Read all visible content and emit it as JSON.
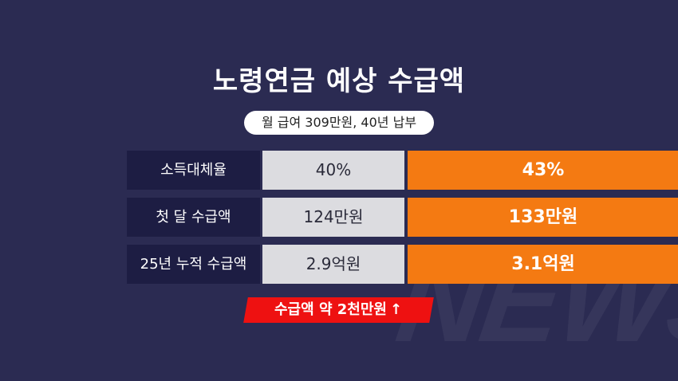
{
  "watermark": "NEWS",
  "title": "노령연금 예상 수급액",
  "subtitle": "월 급여 309만원, 40년 납부",
  "rows": [
    {
      "label": "소득대체율",
      "old": "40%",
      "new": "43%"
    },
    {
      "label": "첫 달 수급액",
      "old": "124만원",
      "new": "133만원"
    },
    {
      "label": "25년 누적 수급액",
      "old": "2.9억원",
      "new": "3.1억원"
    }
  ],
  "banner": {
    "text": "수급액 약 2천만원",
    "arrow": "↑"
  },
  "colors": {
    "background": "#2b2b52",
    "label_cell": "#1d1d43",
    "old_cell": "#dcdce0",
    "new_cell": "#f47a12",
    "banner": "#ee1111"
  }
}
